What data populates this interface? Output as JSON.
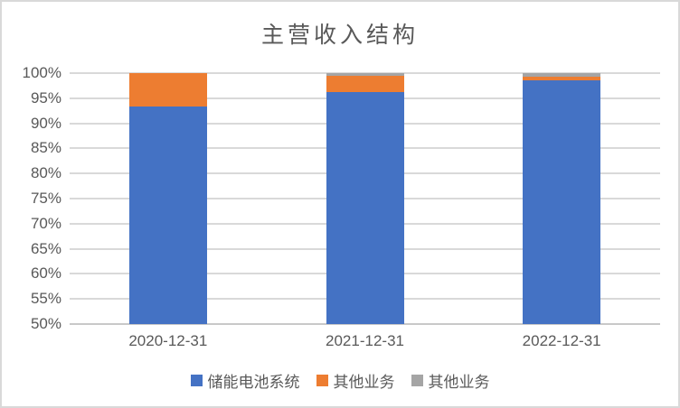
{
  "title": "主营收入结构",
  "colors": {
    "series_blue": "#4472C4",
    "series_orange": "#ED7D31",
    "series_gray": "#A5A5A5",
    "gridline": "#D9D9D9",
    "axis_line": "#C8C8C8",
    "text": "#595959",
    "frame_border": "#D9D9D9",
    "background": "#FFFFFF"
  },
  "chart_data": {
    "type": "bar",
    "stacked": true,
    "title": "主营收入结构",
    "xlabel": "",
    "ylabel": "",
    "categories": [
      "2020-12-31",
      "2021-12-31",
      "2022-12-31"
    ],
    "series": [
      {
        "name": "储能电池系统",
        "color": "#4472C4",
        "values": [
          93.3,
          96.2,
          98.5
        ]
      },
      {
        "name": "其他业务",
        "color": "#ED7D31",
        "values": [
          6.7,
          3.2,
          0.8
        ]
      },
      {
        "name": "其他业务",
        "color": "#A5A5A5",
        "values": [
          0.0,
          0.6,
          0.7
        ]
      }
    ],
    "ylim": [
      50,
      100
    ],
    "yticks_percent": [
      100,
      95,
      90,
      85,
      80,
      75,
      70,
      65,
      60,
      55,
      50
    ],
    "ytick_labels": [
      "100%",
      "95%",
      "90%",
      "85%",
      "80%",
      "75%",
      "70%",
      "65%",
      "60%",
      "55%",
      "50%"
    ],
    "grid": true,
    "legend_position": "bottom"
  },
  "legend": {
    "items": [
      {
        "label": "储能电池系统",
        "color": "#4472C4"
      },
      {
        "label": "其他业务",
        "color": "#ED7D31"
      },
      {
        "label": "其他业务",
        "color": "#A5A5A5"
      }
    ]
  }
}
